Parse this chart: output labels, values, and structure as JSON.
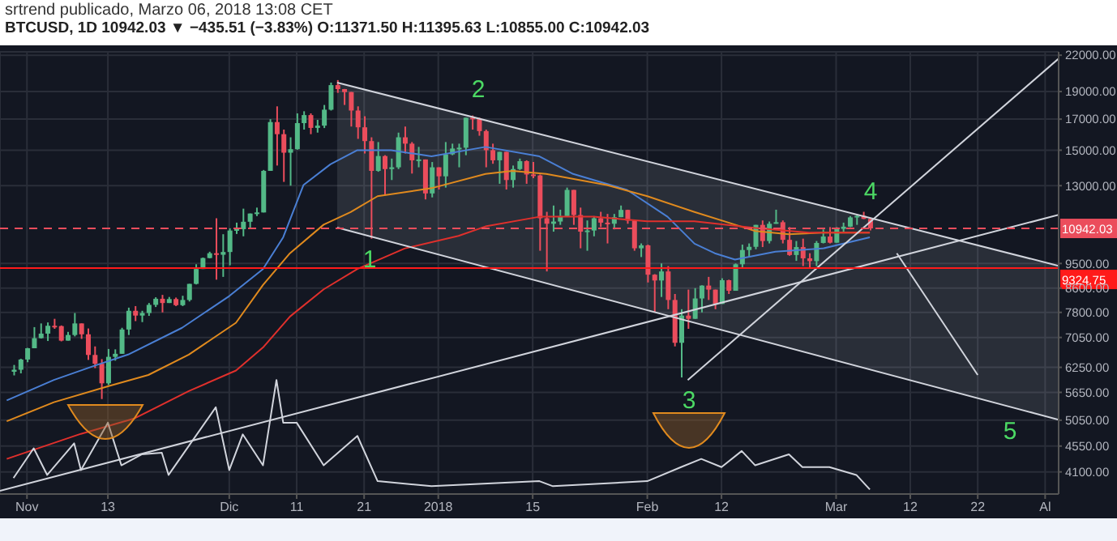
{
  "chart_data": {
    "type": "candlestick",
    "title": "srtrend publicado, Marzo 06, 2018 13:08 CET",
    "subtitle": "BTCUSD, 1D  10942.03 ▼ −435.51 (−3.83%)  O:11371.50 H:11395.63 L:10855.00 C:10942.03",
    "x": [
      "2017-10-30",
      "2017-10-31",
      "2017-11-01",
      "2017-11-02",
      "2017-11-03",
      "2017-11-04",
      "2017-11-05",
      "2017-11-06",
      "2017-11-07",
      "2017-11-08",
      "2017-11-09",
      "2017-11-10",
      "2017-11-11",
      "2017-11-12",
      "2017-11-13",
      "2017-11-14",
      "2017-11-15",
      "2017-11-16",
      "2017-11-17",
      "2017-11-18",
      "2017-11-19",
      "2017-11-20",
      "2017-11-21",
      "2017-11-22",
      "2017-11-23",
      "2017-11-24",
      "2017-11-25",
      "2017-11-26",
      "2017-11-27",
      "2017-11-28",
      "2017-11-29",
      "2017-11-30",
      "2017-12-01",
      "2017-12-02",
      "2017-12-03",
      "2017-12-04",
      "2017-12-05",
      "2017-12-06",
      "2017-12-07",
      "2017-12-08",
      "2017-12-09",
      "2017-12-10",
      "2017-12-11",
      "2017-12-12",
      "2017-12-13",
      "2017-12-14",
      "2017-12-15",
      "2017-12-16",
      "2017-12-17",
      "2017-12-18",
      "2017-12-19",
      "2017-12-20",
      "2017-12-21",
      "2017-12-22",
      "2017-12-23",
      "2017-12-24",
      "2017-12-25",
      "2017-12-26",
      "2017-12-27",
      "2017-12-28",
      "2017-12-29",
      "2017-12-30",
      "2017-12-31",
      "2018-01-01",
      "2018-01-02",
      "2018-01-03",
      "2018-01-04",
      "2018-01-05",
      "2018-01-06",
      "2018-01-07",
      "2018-01-08",
      "2018-01-09",
      "2018-01-10",
      "2018-01-11",
      "2018-01-12",
      "2018-01-13",
      "2018-01-14",
      "2018-01-15",
      "2018-01-16",
      "2018-01-17",
      "2018-01-18",
      "2018-01-19",
      "2018-01-20",
      "2018-01-21",
      "2018-01-22",
      "2018-01-23",
      "2018-01-24",
      "2018-01-25",
      "2018-01-26",
      "2018-01-27",
      "2018-01-28",
      "2018-01-29",
      "2018-01-30",
      "2018-01-31",
      "2018-02-01",
      "2018-02-02",
      "2018-02-03",
      "2018-02-04",
      "2018-02-05",
      "2018-02-06",
      "2018-02-07",
      "2018-02-08",
      "2018-02-09",
      "2018-02-10",
      "2018-02-11",
      "2018-02-12",
      "2018-02-13",
      "2018-02-14",
      "2018-02-15",
      "2018-02-16",
      "2018-02-17",
      "2018-02-18",
      "2018-02-19",
      "2018-02-20",
      "2018-02-21",
      "2018-02-22",
      "2018-02-23",
      "2018-02-24",
      "2018-02-25",
      "2018-02-26",
      "2018-02-27",
      "2018-02-28",
      "2018-03-01",
      "2018-03-02",
      "2018-03-03",
      "2018-03-04",
      "2018-03-05",
      "2018-03-06"
    ],
    "ohlc": [
      [
        6140,
        6310,
        6050,
        6190
      ],
      [
        6190,
        6470,
        6100,
        6450
      ],
      [
        6450,
        6760,
        6380,
        6750
      ],
      [
        6750,
        7350,
        6750,
        7030
      ],
      [
        7030,
        7460,
        7020,
        7160
      ],
      [
        7160,
        7490,
        6950,
        7390
      ],
      [
        7390,
        7600,
        7300,
        7380
      ],
      [
        7380,
        7400,
        6940,
        6960
      ],
      [
        6960,
        7210,
        6960,
        7120
      ],
      [
        7120,
        7780,
        7080,
        7460
      ],
      [
        7460,
        7460,
        7010,
        7140
      ],
      [
        7140,
        7310,
        6440,
        6570
      ],
      [
        6570,
        6800,
        6230,
        6340
      ],
      [
        6340,
        6460,
        5500,
        5860
      ],
      [
        5860,
        6730,
        5820,
        6520
      ],
      [
        6520,
        6720,
        6420,
        6600
      ],
      [
        6600,
        7330,
        6600,
        7280
      ],
      [
        7280,
        7950,
        7120,
        7850
      ],
      [
        7850,
        8000,
        7530,
        7700
      ],
      [
        7700,
        7850,
        7500,
        7780
      ],
      [
        7780,
        8100,
        7690,
        8040
      ],
      [
        8040,
        8290,
        7970,
        8240
      ],
      [
        8240,
        8370,
        7800,
        8100
      ],
      [
        8100,
        8300,
        8100,
        8230
      ],
      [
        8230,
        8280,
        8000,
        8030
      ],
      [
        8030,
        8340,
        8000,
        8200
      ],
      [
        8200,
        8750,
        8150,
        8750
      ],
      [
        8750,
        9470,
        8730,
        9290
      ],
      [
        9290,
        9730,
        9290,
        9710
      ],
      [
        9710,
        9960,
        9700,
        9900
      ],
      [
        9900,
        11400,
        8900,
        9840
      ],
      [
        9840,
        10690,
        9000,
        9950
      ],
      [
        9950,
        10950,
        9430,
        10850
      ],
      [
        10850,
        11200,
        10700,
        10910
      ],
      [
        10910,
        11850,
        10600,
        11240
      ],
      [
        11240,
        11620,
        10950,
        11620
      ],
      [
        11620,
        11900,
        11500,
        11670
      ],
      [
        11670,
        13850,
        11670,
        13800
      ],
      [
        13800,
        17000,
        13800,
        16800
      ],
      [
        16800,
        17900,
        14100,
        16000
      ],
      [
        16000,
        16300,
        13200,
        14850
      ],
      [
        14850,
        15800,
        13000,
        15060
      ],
      [
        15060,
        17400,
        15030,
        16730
      ],
      [
        16730,
        17550,
        16300,
        17280
      ],
      [
        17280,
        17400,
        16000,
        16410
      ],
      [
        16410,
        16950,
        16100,
        16560
      ],
      [
        16560,
        18000,
        16400,
        17660
      ],
      [
        17660,
        19700,
        17600,
        19500
      ],
      [
        19500,
        19900,
        18900,
        19190
      ],
      [
        19190,
        19200,
        18000,
        18960
      ],
      [
        18960,
        18970,
        16500,
        17600
      ],
      [
        17600,
        17900,
        15700,
        16450
      ],
      [
        16450,
        17200,
        14800,
        15560
      ],
      [
        15560,
        15800,
        10500,
        13800
      ],
      [
        13800,
        15500,
        13750,
        14650
      ],
      [
        14650,
        14700,
        12500,
        13900
      ],
      [
        13900,
        14500,
        13300,
        14000
      ],
      [
        14000,
        16100,
        13900,
        15800
      ],
      [
        15800,
        16500,
        14800,
        15400
      ],
      [
        15400,
        15500,
        13650,
        14400
      ],
      [
        14400,
        15200,
        14000,
        14450
      ],
      [
        14450,
        14450,
        12300,
        12600
      ],
      [
        12600,
        14300,
        12400,
        14000
      ],
      [
        14000,
        14000,
        12800,
        13500
      ],
      [
        13500,
        15500,
        12900,
        14750
      ],
      [
        14750,
        15400,
        14700,
        15100
      ],
      [
        15100,
        15400,
        14000,
        15150
      ],
      [
        15150,
        17100,
        14700,
        17100
      ],
      [
        17100,
        17250,
        16300,
        17050
      ],
      [
        17050,
        17100,
        15900,
        16200
      ],
      [
        16200,
        16300,
        14000,
        15000
      ],
      [
        15000,
        15400,
        14200,
        14400
      ],
      [
        14400,
        14900,
        13100,
        14900
      ],
      [
        14900,
        14900,
        12800,
        13300
      ],
      [
        13300,
        14100,
        12900,
        13900
      ],
      [
        13900,
        14500,
        13850,
        14350
      ],
      [
        14350,
        14400,
        13100,
        13600
      ],
      [
        13600,
        14300,
        13400,
        13550
      ],
      [
        13550,
        13600,
        10000,
        11400
      ],
      [
        11400,
        11700,
        9200,
        11150
      ],
      [
        11150,
        12000,
        10800,
        11250
      ],
      [
        11250,
        11800,
        11100,
        11500
      ],
      [
        11500,
        12900,
        11500,
        12780
      ],
      [
        12780,
        12780,
        11100,
        11550
      ],
      [
        11550,
        11900,
        10100,
        10800
      ],
      [
        10800,
        11300,
        10000,
        10850
      ],
      [
        10850,
        11500,
        10600,
        11400
      ],
      [
        11400,
        11700,
        11000,
        11200
      ],
      [
        11200,
        11600,
        10300,
        11150
      ],
      [
        11150,
        11600,
        10900,
        11450
      ],
      [
        11450,
        12000,
        11450,
        11790
      ],
      [
        11790,
        11800,
        11150,
        11290
      ],
      [
        11290,
        11300,
        10000,
        10100
      ],
      [
        10100,
        10300,
        9750,
        10220
      ],
      [
        10220,
        10250,
        8800,
        9080
      ],
      [
        9080,
        9100,
        7800,
        8870
      ],
      [
        8870,
        9500,
        8300,
        9200
      ],
      [
        9200,
        9400,
        7900,
        8200
      ],
      [
        8200,
        8400,
        6800,
        6900
      ],
      [
        6900,
        7900,
        6000,
        7700
      ],
      [
        7700,
        8550,
        7300,
        7600
      ],
      [
        7600,
        8600,
        7600,
        8250
      ],
      [
        8250,
        8700,
        7800,
        8690
      ],
      [
        8690,
        9000,
        8200,
        8550
      ],
      [
        8550,
        8550,
        7900,
        8070
      ],
      [
        8070,
        8950,
        8070,
        8880
      ],
      [
        8880,
        8900,
        8400,
        8510
      ],
      [
        8510,
        9500,
        8510,
        9470
      ],
      [
        9470,
        10250,
        9350,
        10030
      ],
      [
        10030,
        10300,
        9750,
        10160
      ],
      [
        10160,
        11100,
        10060,
        11100
      ],
      [
        11100,
        11300,
        10150,
        10400
      ],
      [
        10400,
        11250,
        10300,
        11150
      ],
      [
        11150,
        11800,
        11150,
        11220
      ],
      [
        11220,
        11300,
        10300,
        10450
      ],
      [
        10450,
        11000,
        9800,
        9830
      ],
      [
        9830,
        10400,
        9600,
        10150
      ],
      [
        10150,
        10500,
        9400,
        9700
      ],
      [
        9700,
        9900,
        9350,
        9590
      ],
      [
        9590,
        10400,
        9400,
        10320
      ],
      [
        10320,
        10900,
        10300,
        10590
      ],
      [
        10590,
        11000,
        10300,
        10330
      ],
      [
        10330,
        11000,
        10330,
        10920
      ],
      [
        10920,
        11200,
        10800,
        11020
      ],
      [
        11020,
        11500,
        11000,
        11440
      ],
      [
        11440,
        11550,
        11100,
        11510
      ],
      [
        11510,
        11700,
        11360,
        11371.5
      ],
      [
        11371.5,
        11395.63,
        10855,
        10942.03
      ]
    ],
    "colors": [
      "#53b987",
      "#53b987",
      "#53b987",
      "#53b987",
      "#53b987",
      "#53b987",
      "#eb4d5c",
      "#eb4d5c",
      "#53b987",
      "#53b987",
      "#eb4d5c",
      "#eb4d5c",
      "#eb4d5c",
      "#eb4d5c",
      "#53b987",
      "#53b987",
      "#53b987",
      "#53b987",
      "#eb4d5c",
      "#53b987",
      "#53b987",
      "#53b987",
      "#eb4d5c",
      "#53b987",
      "#eb4d5c",
      "#53b987",
      "#53b987",
      "#53b987",
      "#53b987",
      "#53b987",
      "#eb4d5c",
      "#53b987",
      "#53b987",
      "#53b987",
      "#53b987",
      "#53b987",
      "#53b987",
      "#53b987",
      "#53b987",
      "#eb4d5c",
      "#eb4d5c",
      "#53b987",
      "#53b987",
      "#53b987",
      "#eb4d5c",
      "#53b987",
      "#53b987",
      "#53b987",
      "#eb4d5c",
      "#eb4d5c",
      "#eb4d5c",
      "#eb4d5c",
      "#eb4d5c",
      "#eb4d5c",
      "#53b987",
      "#eb4d5c",
      "#53b987",
      "#53b987",
      "#eb4d5c",
      "#eb4d5c",
      "#53b987",
      "#eb4d5c",
      "#53b987",
      "#eb4d5c",
      "#53b987",
      "#53b987",
      "#53b987",
      "#53b987",
      "#eb4d5c",
      "#eb4d5c",
      "#eb4d5c",
      "#eb4d5c",
      "#53b987",
      "#eb4d5c",
      "#53b987",
      "#53b987",
      "#eb4d5c",
      "#eb4d5c",
      "#eb4d5c",
      "#eb4d5c",
      "#53b987",
      "#53b987",
      "#53b987",
      "#eb4d5c",
      "#eb4d5c",
      "#53b987",
      "#53b987",
      "#eb4d5c",
      "#eb4d5c",
      "#53b987",
      "#53b987",
      "#eb4d5c",
      "#eb4d5c",
      "#53b987",
      "#eb4d5c",
      "#eb4d5c",
      "#53b987",
      "#eb4d5c",
      "#eb4d5c",
      "#53b987",
      "#eb4d5c",
      "#53b987",
      "#53b987",
      "#eb4d5c",
      "#eb4d5c",
      "#53b987",
      "#eb4d5c",
      "#53b987",
      "#53b987",
      "#53b987",
      "#53b987",
      "#eb4d5c",
      "#53b987",
      "#53b987",
      "#eb4d5c",
      "#eb4d5c",
      "#53b987",
      "#eb4d5c",
      "#eb4d5c",
      "#53b987",
      "#53b987",
      "#eb4d5c",
      "#53b987",
      "#53b987",
      "#53b987",
      "#53b987",
      "#eb4d5c",
      "#eb4d5c"
    ],
    "series": [
      {
        "type": "line",
        "color": "#4a7fd4",
        "x": [
          "2017-10-29",
          "2017-11-05",
          "2017-11-11",
          "2017-11-16",
          "2017-11-24",
          "2017-12-01",
          "2017-12-06",
          "2017-12-09",
          "2017-12-12",
          "2017-12-16",
          "2017-12-20",
          "2017-12-25",
          "2017-12-31",
          "2018-01-08",
          "2018-01-16",
          "2018-01-21",
          "2018-01-29",
          "2018-02-04",
          "2018-02-08",
          "2018-02-11",
          "2018-02-14",
          "2018-02-20",
          "2018-02-27",
          "2018-03-06"
        ],
        "values": [
          5470,
          5940,
          6290,
          6580,
          7330,
          8330,
          9290,
          10560,
          13030,
          14170,
          15000,
          15000,
          14630,
          15200,
          14630,
          13630,
          12780,
          11470,
          10290,
          9900,
          9650,
          9960,
          10090,
          10560
        ]
      },
      {
        "type": "line",
        "color": "#e08a1e",
        "x": [
          "2017-10-29",
          "2017-11-05",
          "2017-11-13",
          "2017-11-19",
          "2017-11-25",
          "2017-12-02",
          "2017-12-06",
          "2017-12-10",
          "2017-12-15",
          "2017-12-19",
          "2017-12-23",
          "2017-12-31",
          "2018-01-08",
          "2018-01-12",
          "2018-01-17",
          "2018-01-26",
          "2018-02-01",
          "2018-02-08",
          "2018-02-14",
          "2018-02-17",
          "2018-02-22",
          "2018-02-27",
          "2018-03-06"
        ],
        "values": [
          5030,
          5430,
          5790,
          6060,
          6580,
          7480,
          8710,
          9900,
          11110,
          11690,
          12460,
          12870,
          13630,
          13800,
          13630,
          13030,
          12460,
          11690,
          11110,
          10830,
          10690,
          10760,
          10760
        ]
      },
      {
        "type": "line",
        "color": "#e0302c",
        "x": [
          "2017-10-29",
          "2017-11-09",
          "2017-11-17",
          "2017-11-25",
          "2017-12-02",
          "2017-12-06",
          "2017-12-10",
          "2017-12-15",
          "2017-12-20",
          "2017-12-27",
          "2018-01-04",
          "2018-01-08",
          "2018-01-16",
          "2018-01-24",
          "2018-02-01",
          "2018-02-08",
          "2018-02-17",
          "2018-02-25",
          "2018-03-06"
        ],
        "values": [
          4320,
          4780,
          5090,
          5680,
          6170,
          6770,
          7670,
          8560,
          9290,
          10090,
          10620,
          11030,
          11470,
          11470,
          11260,
          11260,
          10960,
          10760,
          10760
        ]
      },
      {
        "type": "line",
        "color": "#d1d4dc",
        "x": [
          "2017-10-30",
          "2017-11-02",
          "2017-11-04",
          "2017-11-08",
          "2017-11-09",
          "2017-11-13",
          "2017-11-15",
          "2017-11-18",
          "2017-11-21",
          "2017-11-22",
          "2017-11-29",
          "2017-12-01",
          "2017-12-03",
          "2017-12-06",
          "2017-12-08",
          "2017-12-09",
          "2017-12-11",
          "2017-12-15",
          "2017-12-20",
          "2017-12-23",
          "2017-12-31",
          "2018-01-16",
          "2018-01-18",
          "2018-02-01",
          "2018-02-06",
          "2018-02-09",
          "2018-02-12",
          "2018-02-15",
          "2018-02-17",
          "2018-02-22",
          "2018-02-24",
          "2018-02-28",
          "2018-03-04",
          "2018-03-06"
        ],
        "values": [
          4000,
          4510,
          4050,
          4600,
          4130,
          5000,
          4210,
          4400,
          4430,
          4050,
          5320,
          4130,
          4770,
          4210,
          5940,
          5000,
          5000,
          4210,
          4740,
          3950,
          3870,
          3950,
          3870,
          3950,
          4180,
          4320,
          4180,
          4460,
          4210,
          4400,
          4180,
          4180,
          4050,
          3820
        ]
      },
      {
        "type": "line",
        "color": "#d1d4dc",
        "x": [
          "2017-12-17",
          "2018-04-03"
        ],
        "values": [
          19700,
          9410
        ],
        "lower": [
          10980,
          5060
        ],
        "upper": [
          19700,
          9410
        ]
      },
      {
        "type": "line",
        "color": "#d1d4dc",
        "x": [
          "2017-12-17",
          "2018-04-03"
        ],
        "values": [
          10980,
          5060
        ]
      },
      {
        "type": "line",
        "color": "#d1d4dc",
        "x": [
          "2017-10-28",
          "2018-04-03"
        ],
        "values": [
          3800,
          11560
        ]
      },
      {
        "type": "line",
        "color": "#d1d4dc",
        "x": [
          "2018-02-07",
          "2018-04-03"
        ],
        "values": [
          5940,
          21700
        ]
      },
      {
        "type": "line",
        "color": "#d1d4dc",
        "x": [
          "2018-03-10",
          "2018-03-22"
        ],
        "values": [
          9900,
          6060
        ]
      }
    ],
    "ref_lines": [
      {
        "axis": "y",
        "value": 9324.75,
        "label": "9324.75",
        "color": "#ff1a1a",
        "line_style": "solid"
      },
      {
        "axis": "y",
        "value": 10942.03,
        "label": "10942.03",
        "color": "#eb4d5c",
        "line_style": "dashed"
      }
    ],
    "annotations": [
      "1",
      "2",
      "3",
      "4",
      "5"
    ],
    "log": "y",
    "grid": true,
    "xlim": [
      "2017-10-28",
      "2018-04-03"
    ],
    "xticks": [
      {
        "value": "2017-11-01",
        "label": "Nov"
      },
      {
        "value": "2017-11-13",
        "label": "13"
      },
      {
        "value": "2017-12-01",
        "label": "Dic"
      },
      {
        "value": "2017-12-11",
        "label": "11"
      },
      {
        "value": "2017-12-21",
        "label": "21"
      },
      {
        "value": "2018-01-01",
        "label": "2018"
      },
      {
        "value": "2018-01-15",
        "label": "15"
      },
      {
        "value": "2018-02-01",
        "label": "Feb"
      },
      {
        "value": "2018-02-12",
        "label": "12"
      },
      {
        "value": "2018-03-01",
        "label": "Mar"
      },
      {
        "value": "2018-03-12",
        "label": "12"
      },
      {
        "value": "2018-03-22",
        "label": "22"
      },
      {
        "value": "2018-04-01",
        "label": "Al"
      }
    ],
    "ylim": [
      3750,
      22300
    ],
    "yticks": [
      {
        "value": 4100,
        "label": "4100.00"
      },
      {
        "value": 4550,
        "label": "4550.00"
      },
      {
        "value": 5050,
        "label": "5050.00"
      },
      {
        "value": 5650,
        "label": "5650.00"
      },
      {
        "value": 6250,
        "label": "6250.00"
      },
      {
        "value": 7050,
        "label": "7050.00"
      },
      {
        "value": 7800,
        "label": "7800.00"
      },
      {
        "value": 8600,
        "label": "8600.00"
      },
      {
        "value": 9500,
        "label": "9500.00"
      },
      {
        "value": 13000,
        "label": "13000.00"
      },
      {
        "value": 15000,
        "label": "15000.00"
      },
      {
        "value": 17000,
        "label": "17000.00"
      },
      {
        "value": 19000,
        "label": "19000.00"
      },
      {
        "value": 22000,
        "label": "22000.00"
      }
    ]
  }
}
